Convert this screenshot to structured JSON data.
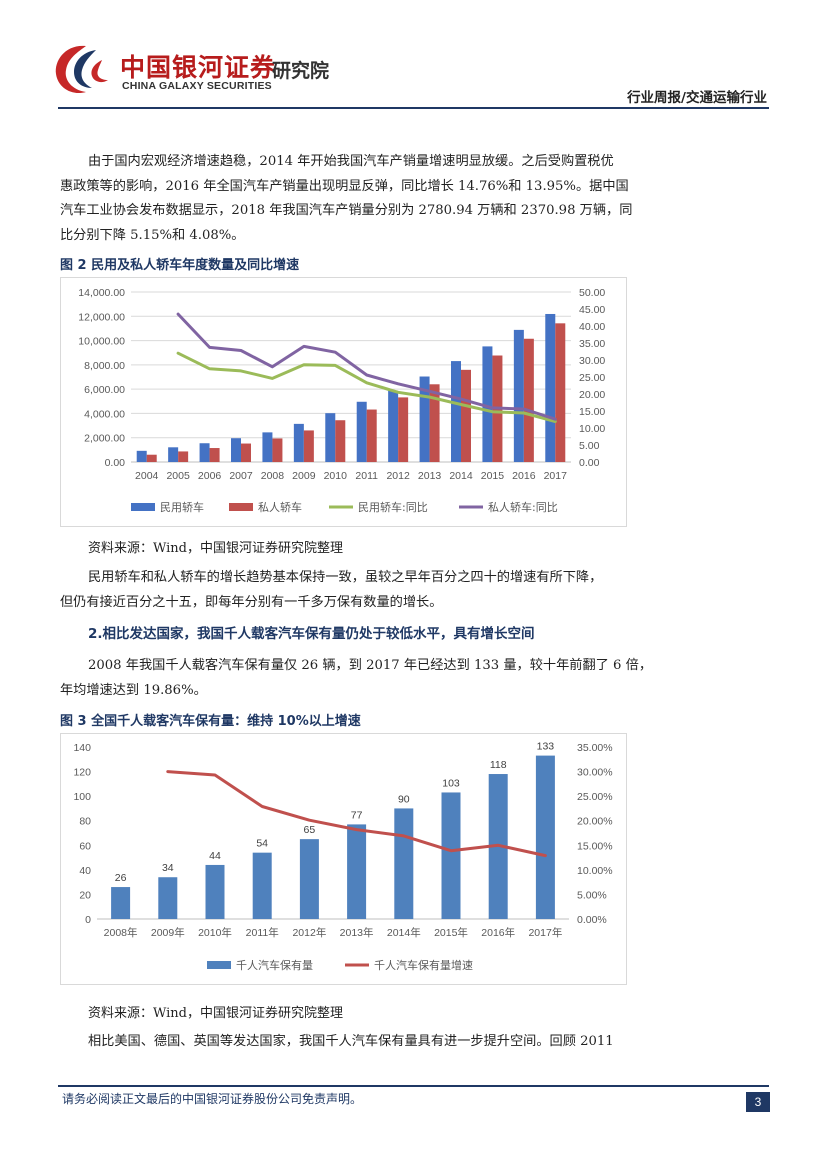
{
  "header": {
    "logo_cn": "中国银河证券",
    "logo_institute": "研究院",
    "logo_en": "CHINA GALAXY SECURITIES",
    "report_type": "行业周报/交通运输行业"
  },
  "paragraph1": {
    "lines": [
      "由于国内宏观经济增速趋稳，2014 年开始我国汽车产销量增速明显放缓。之后受购置税优",
      "惠政策等的影响，2016 年全国汽车产销量出现明显反弹，同比增长 14.76%和 13.95%。据中国",
      "汽车工业协会发布数据显示，2018 年我国汽车产销量分别为 2780.94 万辆和 2370.98 万辆，同",
      "比分别下降 5.15%和 4.08%。"
    ]
  },
  "figure2": {
    "title": "图 2 民用及私人轿车年度数量及同比增速",
    "source": "资料来源：Wind，中国银河证券研究院整理"
  },
  "paragraph2": {
    "lines": [
      "民用轿车和私人轿车的增长趋势基本保持一致，虽较之早年百分之四十的增速有所下降，",
      "但仍有接近百分之十五，即每年分别有一千多万保有数量的增长。"
    ]
  },
  "section2": {
    "heading": "2.相比发达国家，我国千人载客汽车保有量仍处于较低水平，具有增长空间"
  },
  "paragraph3": {
    "lines": [
      "2008 年我国千人载客汽车保有量仅 26 辆，到 2017 年已经达到 133 量，较十年前翻了 6 倍，",
      "年均增速达到 19.86%。"
    ]
  },
  "figure3": {
    "title": "图 3 全国千人载客汽车保有量：维持 10%以上增速",
    "source": "资料来源：Wind，中国银河证券研究院整理"
  },
  "paragraph4": {
    "lines": [
      "相比美国、德国、英国等发达国家，我国千人汽车保有量具有进一步提升空间。回顾 2011"
    ]
  },
  "footer": {
    "disclaimer": "请务必阅读正文最后的中国银河证券股份公司免责声明。",
    "page_number": "3"
  },
  "chart_data": [
    {
      "type": "bar",
      "title": "",
      "categories": [
        "2004",
        "2005",
        "2006",
        "2007",
        "2008",
        "2009",
        "2010",
        "2011",
        "2012",
        "2013",
        "2014",
        "2015",
        "2016",
        "2017"
      ],
      "series": [
        {
          "name": "民用轿车",
          "kind": "bar",
          "axis": "left",
          "color": "#4472c4",
          "values": [
            920,
            1210,
            1545,
            1960,
            2440,
            3140,
            4020,
            4960,
            5870,
            7040,
            8310,
            9520,
            10880,
            12190
          ]
        },
        {
          "name": "私人轿车",
          "kind": "bar",
          "axis": "left",
          "color": "#c0504d",
          "values": [
            600,
            870,
            1150,
            1520,
            1940,
            2600,
            3440,
            4320,
            5320,
            6400,
            7590,
            8770,
            10150,
            11420
          ]
        },
        {
          "name": "民用轿车:同比",
          "kind": "line",
          "axis": "right",
          "color": "#9bbb59",
          "values": [
            null,
            32.0,
            27.4,
            26.8,
            24.6,
            28.6,
            28.4,
            23.3,
            20.5,
            19.1,
            16.9,
            14.8,
            14.4,
            11.9
          ]
        },
        {
          "name": "私人轿车:同比",
          "kind": "line",
          "axis": "right",
          "color": "#8064a2",
          "values": [
            null,
            43.5,
            33.7,
            32.8,
            28.0,
            34.0,
            32.3,
            25.6,
            23.0,
            20.8,
            18.5,
            15.9,
            15.6,
            12.6
          ]
        }
      ],
      "y_left": {
        "min": 0,
        "max": 14000,
        "ticks": [
          "0.00",
          "2,000.00",
          "4,000.00",
          "6,000.00",
          "8,000.00",
          "10,000.00",
          "12,000.00",
          "14,000.00"
        ]
      },
      "y_right": {
        "min": 0,
        "max": 50,
        "ticks": [
          "0.00",
          "5.00",
          "10.00",
          "15.00",
          "20.00",
          "25.00",
          "30.00",
          "35.00",
          "40.00",
          "45.00",
          "50.00"
        ]
      },
      "grid": true,
      "legend": "bottom"
    },
    {
      "type": "bar",
      "title": "",
      "categories": [
        "2008年",
        "2009年",
        "2010年",
        "2011年",
        "2012年",
        "2013年",
        "2014年",
        "2015年",
        "2016年",
        "2017年"
      ],
      "series": [
        {
          "name": "千人汽车保有量",
          "kind": "bar",
          "axis": "left",
          "color": "#4f81bd",
          "values": [
            26,
            34,
            44,
            54,
            65,
            77,
            90,
            103,
            118,
            133
          ],
          "labels": [
            "26",
            "34",
            "44",
            "54",
            "65",
            "77",
            "90",
            "103",
            "118",
            "133"
          ]
        },
        {
          "name": "千人汽车保有量增速",
          "kind": "line",
          "axis": "right",
          "color": "#c0504d",
          "values": [
            null,
            30.0,
            29.3,
            22.9,
            20.1,
            18.2,
            16.9,
            13.9,
            15.0,
            12.9
          ]
        }
      ],
      "y_left": {
        "min": 0,
        "max": 140,
        "ticks": [
          "0",
          "20",
          "40",
          "60",
          "80",
          "100",
          "120",
          "140"
        ]
      },
      "y_right": {
        "min": 0,
        "max": 35,
        "ticks": [
          "0.00%",
          "5.00%",
          "10.00%",
          "15.00%",
          "20.00%",
          "25.00%",
          "30.00%",
          "35.00%"
        ]
      },
      "grid": false,
      "legend": "bottom"
    }
  ]
}
